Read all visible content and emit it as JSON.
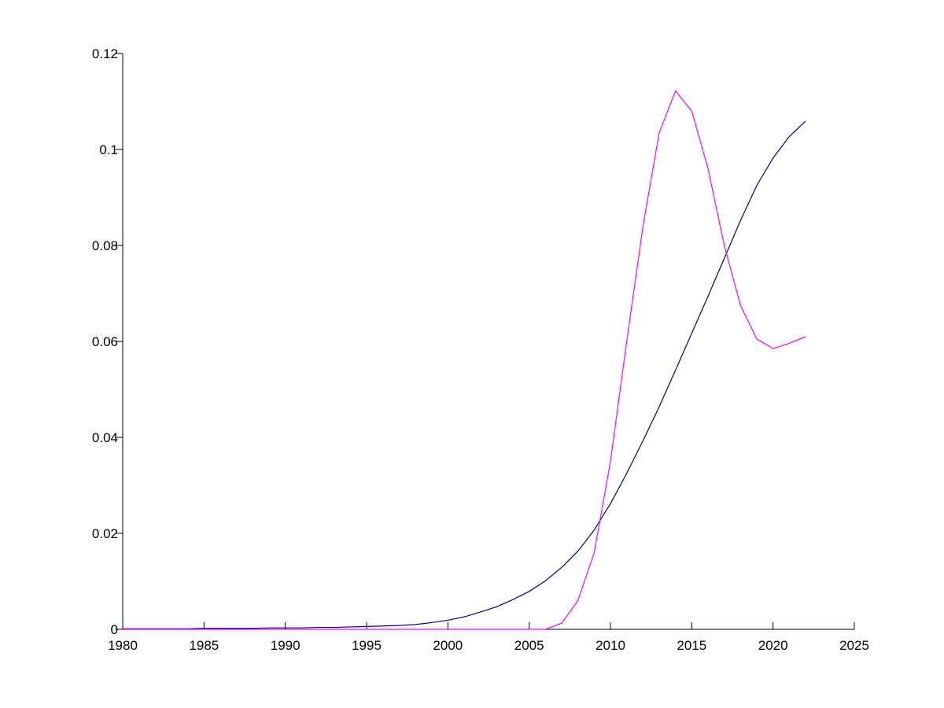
{
  "chart_data": {
    "type": "line",
    "x": [
      1980,
      1981,
      1982,
      1983,
      1984,
      1985,
      1986,
      1987,
      1988,
      1989,
      1990,
      1991,
      1992,
      1993,
      1994,
      1995,
      1996,
      1997,
      1998,
      1999,
      2000,
      2001,
      2002,
      2003,
      2004,
      2005,
      2006,
      2007,
      2008,
      2009,
      2010,
      2011,
      2012,
      2013,
      2014,
      2015,
      2016,
      2017,
      2018,
      2019,
      2020,
      2021,
      2022
    ],
    "series": [
      {
        "color": "#000080",
        "values": [
          0.0001,
          0.0001,
          0.0001,
          0.0001,
          0.0001,
          0.0002,
          0.0002,
          0.0002,
          0.0002,
          0.0003,
          0.0003,
          0.0003,
          0.0004,
          0.0004,
          0.0005,
          0.0006,
          0.0007,
          0.0008,
          0.001,
          0.0014,
          0.0019,
          0.0026,
          0.0036,
          0.0047,
          0.0062,
          0.0079,
          0.0101,
          0.0129,
          0.0163,
          0.0207,
          0.0262,
          0.0325,
          0.0393,
          0.0464,
          0.054,
          0.0617,
          0.0694,
          0.0773,
          0.0852,
          0.0925,
          0.0982,
          0.1027,
          0.1059
        ]
      },
      {
        "color": "#ff00ff",
        "values": [
          0,
          0,
          0,
          0,
          0,
          0,
          0,
          0,
          0,
          0,
          0,
          0,
          0,
          0,
          0,
          0,
          0,
          0,
          0,
          0,
          0,
          0,
          0,
          0,
          0,
          0,
          0,
          0.0013,
          0.006,
          0.016,
          0.035,
          0.06,
          0.084,
          0.1035,
          0.1122,
          0.108,
          0.096,
          0.08,
          0.0675,
          0.0605,
          0.0585,
          0.0596,
          0.061
        ]
      }
    ],
    "xlim": [
      1980,
      2025
    ],
    "xticks": [
      1980,
      1985,
      1990,
      1995,
      2000,
      2005,
      2010,
      2015,
      2020,
      2025
    ],
    "ylim": [
      0,
      0.12
    ],
    "yticks": [
      0,
      0.02,
      0.04,
      0.06,
      0.08,
      0.1,
      0.12
    ]
  }
}
